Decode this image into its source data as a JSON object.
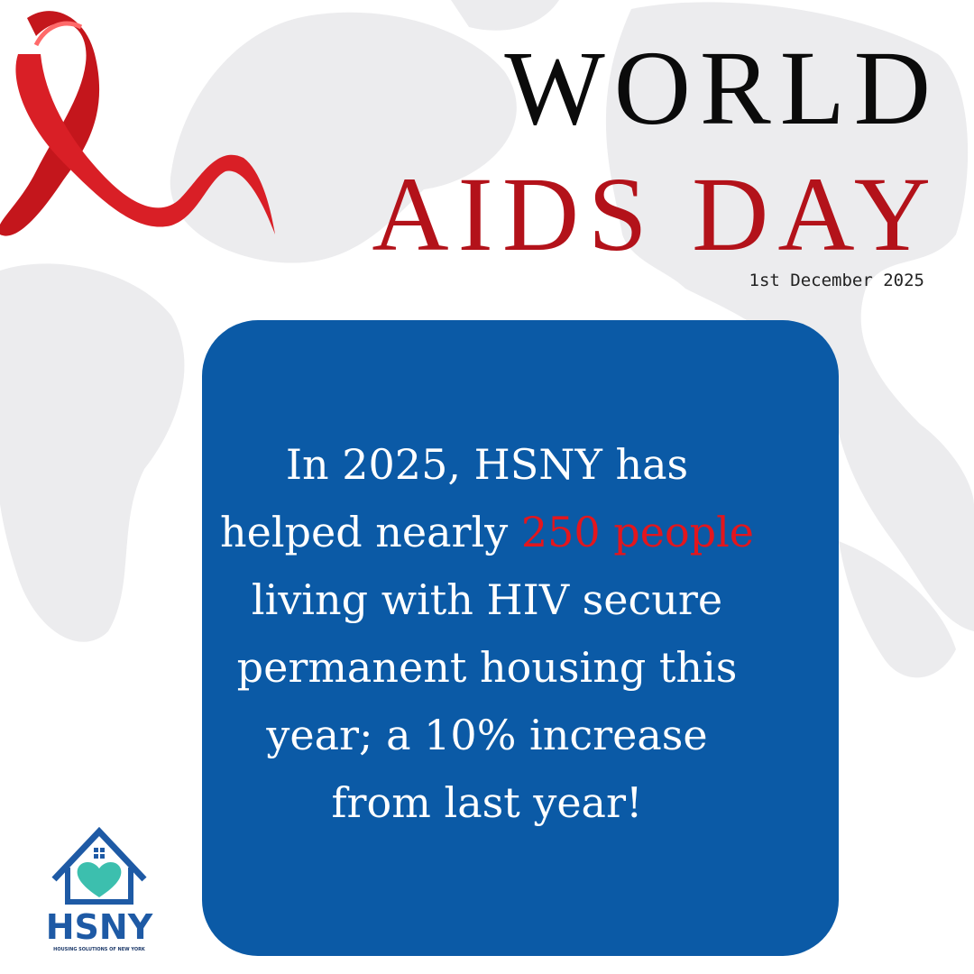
{
  "header": {
    "title_line1": "WORLD",
    "title_line2": "AIDS DAY",
    "date": "1st December 2025"
  },
  "message": {
    "line1": "In 2025, HSNY has",
    "line2_start": "helped nearly",
    "line2_highlight": "250 people",
    "line3": "living with HIV secure",
    "line4": "permanent housing this",
    "line5": "year; a 10% increase",
    "line6": "from last year!"
  },
  "logo": {
    "name": "HSNY",
    "tagline": "HOUSING SOLUTIONS OF NEW YORK"
  }
}
